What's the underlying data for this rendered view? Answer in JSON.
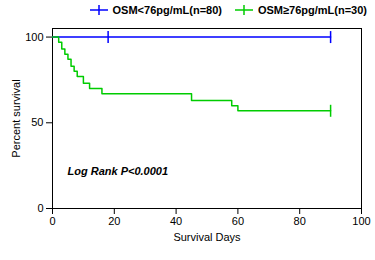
{
  "chart_data": {
    "type": "line",
    "line_style": "step",
    "xlabel": "Survival Days",
    "ylabel": "Percent survival",
    "annotation": "Log Rank P<0.0001",
    "xlim": [
      0,
      100
    ],
    "ylim": [
      0,
      105
    ],
    "xticks": [
      0,
      20,
      40,
      60,
      80,
      100
    ],
    "yticks": [
      0,
      50,
      100
    ],
    "legend": "upper right",
    "series": [
      {
        "name": "OSM<76pg/mL(n=80)",
        "color": "#0000FF",
        "marker": "|",
        "x": [
          0,
          18,
          90
        ],
        "values": [
          100,
          100,
          100
        ],
        "censor_x": [
          18,
          90
        ],
        "censor_y": [
          100,
          100
        ]
      },
      {
        "name": "OSM≥76pg/mL(n=30)",
        "color": "#00CC00",
        "marker": "|",
        "x": [
          0,
          2,
          3,
          4,
          5,
          6,
          7,
          8,
          9,
          10,
          11,
          12,
          13,
          14,
          15,
          16,
          17,
          18,
          19,
          20,
          22,
          25,
          30,
          45,
          58,
          60,
          90
        ],
        "values": [
          100,
          97,
          93,
          90,
          87,
          83,
          80,
          77,
          77,
          73,
          73,
          70,
          70,
          70,
          70,
          67,
          67,
          67,
          67,
          67,
          67,
          67,
          67,
          63,
          60,
          57,
          57
        ],
        "censor_x": [
          90
        ],
        "censor_y": [
          57
        ]
      }
    ]
  }
}
